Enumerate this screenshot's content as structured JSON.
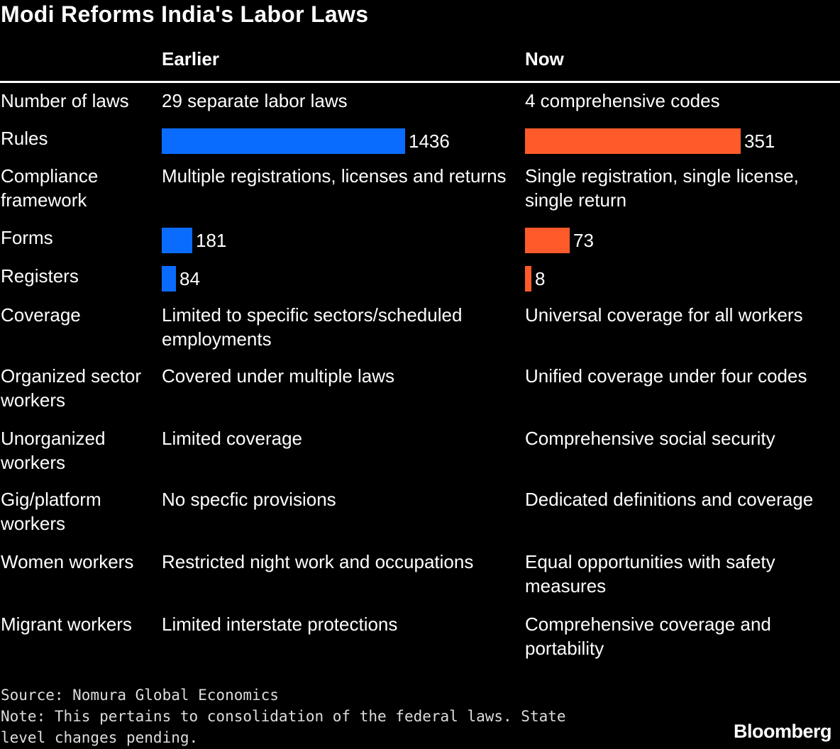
{
  "chart_data": {
    "type": "table",
    "title": "Modi Reforms India's Labor Laws",
    "columns": [
      "",
      "Earlier",
      "Now"
    ],
    "colors": {
      "earlier": "#0A6CFF",
      "now": "#FF5A2A",
      "background": "#000000",
      "text": "#FFFFFF"
    },
    "rows": [
      {
        "label": "Number of laws",
        "earlier": "29 separate labor laws",
        "now": "4 comprehensive codes"
      },
      {
        "label": "Rules",
        "earlier_value": 1436,
        "now_value": 351,
        "bars": true
      },
      {
        "label": "Compliance framework",
        "earlier": "Multiple registrations, licenses and returns",
        "now": "Single registration, single license, single return"
      },
      {
        "label": "Forms",
        "earlier_value": 181,
        "now_value": 73,
        "bars": true
      },
      {
        "label": "Registers",
        "earlier_value": 84,
        "now_value": 8,
        "bars": true
      },
      {
        "label": "Coverage",
        "earlier": "Limited to specific sectors/scheduled employments",
        "now": "Universal coverage for all workers"
      },
      {
        "label": "Organized sector workers",
        "earlier": "Covered under multiple laws",
        "now": "Unified coverage under four codes"
      },
      {
        "label": "Unorganized workers",
        "earlier": "Limited coverage",
        "now": "Comprehensive social security"
      },
      {
        "label": "Gig/platform workers",
        "earlier": "No specfic provisions",
        "now": "Dedicated definitions and coverage"
      },
      {
        "label": "Women workers",
        "earlier": "Restricted night work and occupations",
        "now": "Equal opportunities with safety measures"
      },
      {
        "label": "Migrant workers",
        "earlier": "Limited interstate protections",
        "now": "Comprehensive coverage and portability"
      }
    ],
    "source": "Source: Nomura Global Economics",
    "note": "Note: This pertains to consolidation of the federal laws. State level changes pending.",
    "brand": "Bloomberg"
  }
}
